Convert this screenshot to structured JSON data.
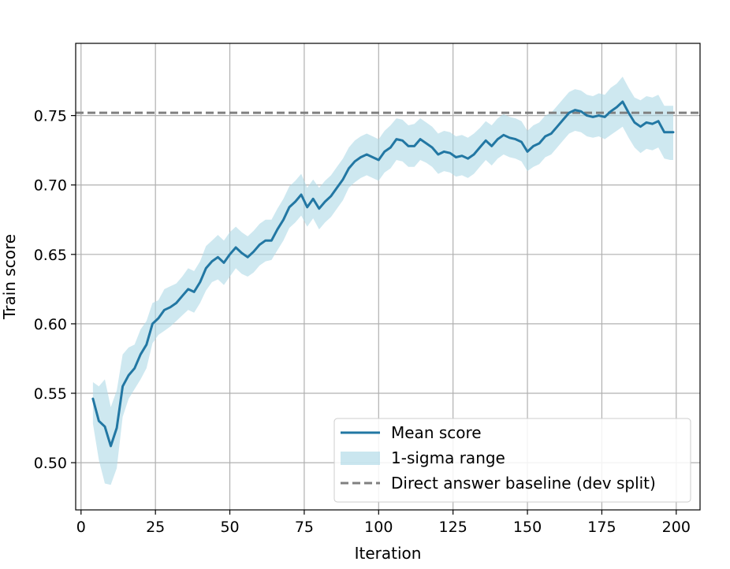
{
  "chart_data": {
    "type": "line",
    "title": "",
    "xlabel": "Iteration",
    "ylabel": "Train score",
    "xlim": [
      -1.8,
      208
    ],
    "ylim": [
      0.466,
      0.802
    ],
    "xticks": [
      0,
      25,
      50,
      75,
      100,
      125,
      150,
      175,
      200
    ],
    "xtick_labels": [
      "0",
      "25",
      "50",
      "75",
      "100",
      "125",
      "150",
      "175",
      "200"
    ],
    "yticks": [
      0.5,
      0.55,
      0.6,
      0.65,
      0.7,
      0.75
    ],
    "ytick_labels": [
      "0.50",
      "0.55",
      "0.60",
      "0.65",
      "0.70",
      "0.75"
    ],
    "grid": true,
    "legend_position": "lower-right",
    "legend": [
      "Mean score",
      "1-sigma range",
      "Direct answer baseline (dev split)"
    ],
    "colors": {
      "mean": "#2277a3",
      "band": "#add8e6",
      "baseline": "#808080"
    },
    "x": [
      4,
      6,
      8,
      10,
      12,
      14,
      16,
      18,
      20,
      22,
      24,
      26,
      28,
      30,
      32,
      34,
      36,
      38,
      40,
      42,
      44,
      46,
      48,
      50,
      52,
      54,
      56,
      58,
      60,
      62,
      64,
      66,
      68,
      70,
      72,
      74,
      76,
      78,
      80,
      82,
      84,
      86,
      88,
      90,
      92,
      94,
      96,
      98,
      100,
      102,
      104,
      106,
      108,
      110,
      112,
      114,
      116,
      118,
      120,
      122,
      124,
      126,
      128,
      130,
      132,
      134,
      136,
      138,
      140,
      142,
      144,
      146,
      148,
      150,
      152,
      154,
      156,
      158,
      160,
      162,
      164,
      166,
      168,
      170,
      172,
      174,
      176,
      178,
      180,
      182,
      184,
      186,
      188,
      190,
      192,
      194,
      196,
      198,
      199
    ],
    "series": [
      {
        "name": "Mean score",
        "values": [
          0.546,
          0.53,
          0.526,
          0.512,
          0.525,
          0.555,
          0.563,
          0.568,
          0.578,
          0.585,
          0.6,
          0.604,
          0.61,
          0.612,
          0.615,
          0.62,
          0.625,
          0.623,
          0.63,
          0.64,
          0.645,
          0.648,
          0.644,
          0.65,
          0.655,
          0.651,
          0.648,
          0.652,
          0.657,
          0.66,
          0.66,
          0.668,
          0.675,
          0.684,
          0.688,
          0.693,
          0.684,
          0.69,
          0.683,
          0.688,
          0.692,
          0.698,
          0.704,
          0.712,
          0.717,
          0.72,
          0.722,
          0.72,
          0.718,
          0.724,
          0.727,
          0.733,
          0.732,
          0.728,
          0.728,
          0.733,
          0.73,
          0.727,
          0.722,
          0.724,
          0.723,
          0.72,
          0.721,
          0.719,
          0.722,
          0.727,
          0.732,
          0.728,
          0.733,
          0.736,
          0.734,
          0.733,
          0.731,
          0.724,
          0.728,
          0.73,
          0.735,
          0.737,
          0.742,
          0.747,
          0.752,
          0.754,
          0.753,
          0.75,
          0.749,
          0.75,
          0.749,
          0.753,
          0.756,
          0.76,
          0.752,
          0.745,
          0.742,
          0.745,
          0.744,
          0.746,
          0.738,
          0.738,
          0.738
        ]
      },
      {
        "name": "1-sigma range",
        "lower": [
          0.528,
          0.502,
          0.485,
          0.484,
          0.496,
          0.533,
          0.546,
          0.553,
          0.56,
          0.568,
          0.586,
          0.592,
          0.595,
          0.598,
          0.602,
          0.606,
          0.61,
          0.608,
          0.615,
          0.624,
          0.63,
          0.632,
          0.628,
          0.634,
          0.64,
          0.636,
          0.634,
          0.637,
          0.642,
          0.645,
          0.646,
          0.653,
          0.66,
          0.669,
          0.673,
          0.678,
          0.67,
          0.676,
          0.668,
          0.673,
          0.677,
          0.683,
          0.689,
          0.698,
          0.702,
          0.705,
          0.707,
          0.705,
          0.703,
          0.709,
          0.712,
          0.718,
          0.717,
          0.713,
          0.713,
          0.718,
          0.716,
          0.713,
          0.708,
          0.71,
          0.709,
          0.706,
          0.707,
          0.705,
          0.708,
          0.713,
          0.718,
          0.714,
          0.719,
          0.722,
          0.72,
          0.719,
          0.717,
          0.71,
          0.713,
          0.715,
          0.72,
          0.722,
          0.727,
          0.732,
          0.737,
          0.739,
          0.738,
          0.735,
          0.734,
          0.735,
          0.733,
          0.736,
          0.739,
          0.742,
          0.734,
          0.727,
          0.723,
          0.726,
          0.725,
          0.727,
          0.719,
          0.718,
          0.718
        ],
        "upper": [
          0.558,
          0.555,
          0.56,
          0.54,
          0.552,
          0.578,
          0.583,
          0.585,
          0.596,
          0.602,
          0.615,
          0.617,
          0.625,
          0.627,
          0.629,
          0.634,
          0.64,
          0.638,
          0.645,
          0.656,
          0.66,
          0.664,
          0.66,
          0.666,
          0.67,
          0.666,
          0.663,
          0.667,
          0.672,
          0.675,
          0.675,
          0.683,
          0.69,
          0.699,
          0.703,
          0.708,
          0.698,
          0.704,
          0.698,
          0.703,
          0.707,
          0.713,
          0.719,
          0.727,
          0.732,
          0.735,
          0.737,
          0.735,
          0.733,
          0.739,
          0.743,
          0.748,
          0.747,
          0.743,
          0.744,
          0.748,
          0.745,
          0.742,
          0.737,
          0.739,
          0.738,
          0.735,
          0.736,
          0.734,
          0.737,
          0.741,
          0.746,
          0.743,
          0.748,
          0.751,
          0.749,
          0.748,
          0.746,
          0.739,
          0.743,
          0.745,
          0.75,
          0.752,
          0.757,
          0.762,
          0.767,
          0.769,
          0.768,
          0.765,
          0.764,
          0.766,
          0.765,
          0.77,
          0.773,
          0.778,
          0.77,
          0.763,
          0.761,
          0.764,
          0.763,
          0.765,
          0.757,
          0.757,
          0.757
        ]
      },
      {
        "name": "Direct answer baseline (dev split)",
        "y": 0.752
      }
    ]
  }
}
